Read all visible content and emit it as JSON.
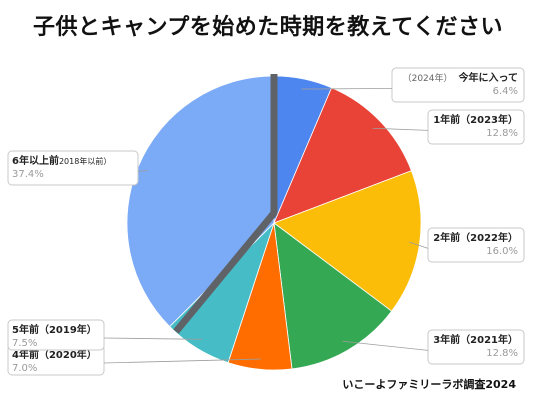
{
  "title": "子供とキャンプを始めた時期を教えてください",
  "credit": "いこーよファミリーラボ調査2024",
  "chart_data": {
    "type": "pie",
    "title": "子供とキャンプを始めた時期を教えてください",
    "start": "12 o'clock",
    "direction": "clockwise",
    "slices": [
      {
        "label_main": "今年に入って",
        "label_sub": "（2024年）",
        "sub_first": true,
        "value": 6.4,
        "pct_text": "6.4%",
        "color": "#4e86ef"
      },
      {
        "label_main": "1年前",
        "label_sub": "（2023年）",
        "sub_first": false,
        "value": 12.8,
        "pct_text": "12.8%",
        "color": "#e84336"
      },
      {
        "label_main": "2年前",
        "label_sub": "（2022年）",
        "sub_first": false,
        "value": 16.0,
        "pct_text": "16.0%",
        "color": "#fbbd07"
      },
      {
        "label_main": "3年前",
        "label_sub": "（2021年）",
        "sub_first": false,
        "value": 12.8,
        "pct_text": "12.8%",
        "color": "#34a853"
      },
      {
        "label_main": "4年前",
        "label_sub": "（2020年）",
        "sub_first": false,
        "value": 7.0,
        "pct_text": "7.0%",
        "color": "#ff6d01"
      },
      {
        "label_main": "5年前",
        "label_sub": "（2019年）",
        "sub_first": false,
        "value": 7.5,
        "pct_text": "7.5%",
        "color": "#46bdc6"
      },
      {
        "label_main": "6年以上前",
        "label_sub": "2018年以前）",
        "sub_first": false,
        "value": 37.4,
        "pct_text": "37.4%",
        "color": "#7baaf7"
      }
    ],
    "divider_color": "#5f6368",
    "legend": "callout labels"
  }
}
